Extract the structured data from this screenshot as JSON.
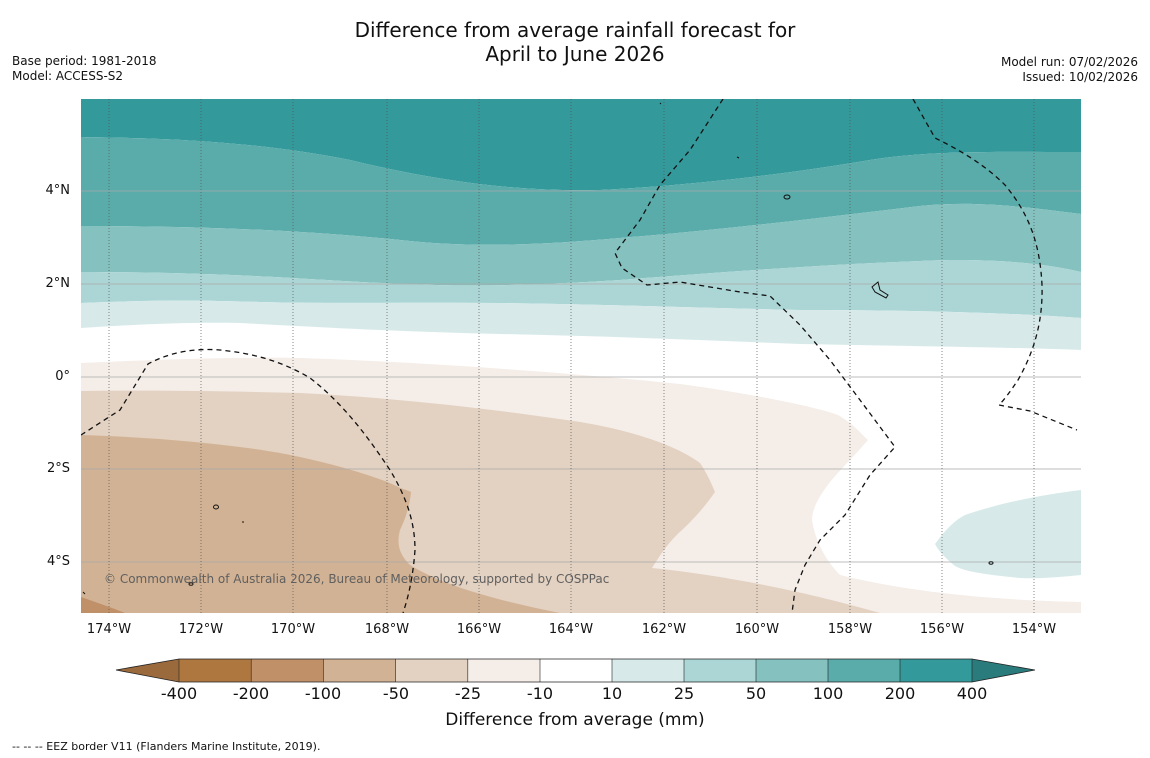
{
  "title": {
    "line1": "Difference from average rainfall forecast for",
    "line2": "April to June 2026"
  },
  "meta": {
    "base_period": "Base period: 1981-2018",
    "model": "Model: ACCESS-S2",
    "model_run": "Model run: 07/02/2026",
    "issued": "Issued: 10/02/2026"
  },
  "map": {
    "lat_labels": [
      "4°N",
      "2°N",
      "0°",
      "2°S",
      "4°S"
    ],
    "lon_labels": [
      "174°W",
      "172°W",
      "170°W",
      "168°W",
      "166°W",
      "164°W",
      "162°W",
      "160°W",
      "158°W",
      "156°W",
      "154°W"
    ],
    "copyright": "© Commonwealth of Australia 2026, Bureau of Meteorology, supported by COSPPac"
  },
  "colorbar": {
    "tick_labels": [
      "-400",
      "-200",
      "-100",
      "-50",
      "-25",
      "-10",
      "10",
      "25",
      "50",
      "100",
      "200",
      "400"
    ],
    "colors": [
      "#9b6a3c",
      "#ae773f",
      "#c09068",
      "#d2b294",
      "#e3d1c1",
      "#f4ede8",
      "#ffffff",
      "#d7eae9",
      "#abd6d5",
      "#84c1bf",
      "#5aacab",
      "#33999a",
      "#2a7b7c"
    ],
    "label": "Difference from average (mm)"
  },
  "footnote": "--  --  -- EEZ border V11 (Flanders Marine Institute, 2019)."
}
